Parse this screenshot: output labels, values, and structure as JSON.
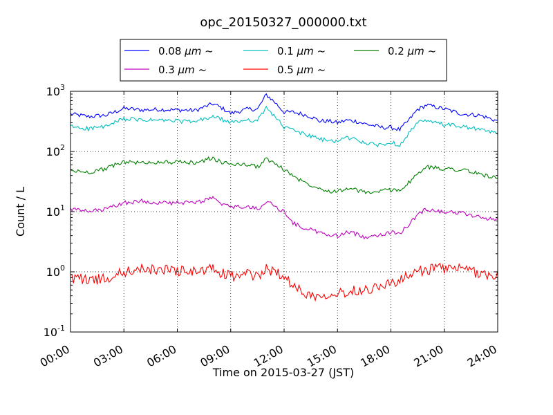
{
  "chart_data": {
    "type": "line",
    "title": "opc_20150327_000000.txt",
    "xlabel": "Time on 2015-03-27 (JST)",
    "ylabel": "Count / L",
    "xlim": [
      0,
      24
    ],
    "ylim": [
      0.1,
      1000
    ],
    "yscale": "log",
    "grid": true,
    "legend_position": "top, above plot",
    "x_ticks": [
      {
        "value": 0,
        "label": "00:00"
      },
      {
        "value": 3,
        "label": "03:00"
      },
      {
        "value": 6,
        "label": "06:00"
      },
      {
        "value": 9,
        "label": "09:00"
      },
      {
        "value": 12,
        "label": "12:00"
      },
      {
        "value": 15,
        "label": "15:00"
      },
      {
        "value": 18,
        "label": "18:00"
      },
      {
        "value": 21,
        "label": "21:00"
      },
      {
        "value": 24,
        "label": "24:00"
      }
    ],
    "y_ticks": [
      {
        "value": 0.1,
        "base": "10",
        "exp": "-1"
      },
      {
        "value": 1,
        "base": "10",
        "exp": "0"
      },
      {
        "value": 10,
        "base": "10",
        "exp": "1"
      },
      {
        "value": 100,
        "base": "10",
        "exp": "2"
      },
      {
        "value": 1000,
        "base": "10",
        "exp": "3"
      }
    ],
    "legend_columns": 3,
    "x": [
      0,
      1,
      2,
      3,
      4,
      5,
      6,
      7,
      8,
      8.5,
      9,
      10,
      10.5,
      11,
      11.5,
      12,
      12.5,
      13,
      13.5,
      14,
      14.5,
      15,
      15.5,
      16,
      16.5,
      17,
      17.5,
      18,
      18.5,
      19,
      19.5,
      20,
      21,
      22,
      23,
      24
    ],
    "series": [
      {
        "name": "0.08 μm ~",
        "legend_value": "0.08",
        "legend_unit": "μm",
        "legend_suffix": "~",
        "color": "#0000ff",
        "values": [
          420,
          380,
          400,
          520,
          490,
          500,
          490,
          480,
          620,
          530,
          430,
          510,
          500,
          880,
          650,
          450,
          450,
          420,
          380,
          320,
          320,
          300,
          330,
          320,
          290,
          270,
          250,
          250,
          230,
          330,
          500,
          590,
          510,
          420,
          400,
          320
        ]
      },
      {
        "name": "0.1 μm ~",
        "legend_value": "0.1",
        "legend_unit": "μm",
        "legend_suffix": "~",
        "color": "#00bfbf",
        "values": [
          260,
          240,
          260,
          350,
          330,
          330,
          320,
          310,
          380,
          340,
          300,
          340,
          320,
          530,
          380,
          250,
          230,
          200,
          180,
          160,
          150,
          150,
          170,
          160,
          140,
          130,
          130,
          140,
          130,
          200,
          300,
          320,
          280,
          260,
          230,
          200
        ]
      },
      {
        "name": "0.2 μm ~",
        "legend_value": "0.2",
        "legend_unit": "μm",
        "legend_suffix": "~",
        "color": "#008000",
        "values": [
          48,
          45,
          52,
          68,
          64,
          67,
          66,
          65,
          78,
          65,
          62,
          60,
          55,
          76,
          62,
          50,
          40,
          32,
          28,
          25,
          22,
          22,
          24,
          23,
          21,
          21,
          22,
          23,
          23,
          30,
          42,
          55,
          52,
          50,
          42,
          36
        ]
      },
      {
        "name": "0.3 μm ~",
        "legend_value": "0.3",
        "legend_unit": "μm",
        "legend_suffix": "~",
        "color": "#bf00bf",
        "values": [
          11,
          10,
          11,
          14,
          15,
          14,
          14,
          14,
          17,
          13,
          12,
          12,
          11,
          15,
          12,
          10,
          6.5,
          5.5,
          5,
          4.5,
          4,
          4,
          4.5,
          4.3,
          3.8,
          4,
          4.2,
          4.5,
          4.4,
          6,
          9,
          11,
          10,
          9.5,
          8,
          7.5
        ]
      },
      {
        "name": "0.5 μm ~",
        "legend_value": "0.5",
        "legend_unit": "μm",
        "legend_suffix": "~",
        "color": "#ff0000",
        "values": [
          0.8,
          0.75,
          0.75,
          1.0,
          1.1,
          1.1,
          1.05,
          1.0,
          1.1,
          0.95,
          0.85,
          0.9,
          0.85,
          1.1,
          1.0,
          0.9,
          0.55,
          0.5,
          0.4,
          0.4,
          0.45,
          0.45,
          0.45,
          0.5,
          0.5,
          0.55,
          0.6,
          0.65,
          0.7,
          0.85,
          1.0,
          1.1,
          1.15,
          1.1,
          0.95,
          0.85
        ]
      }
    ]
  }
}
